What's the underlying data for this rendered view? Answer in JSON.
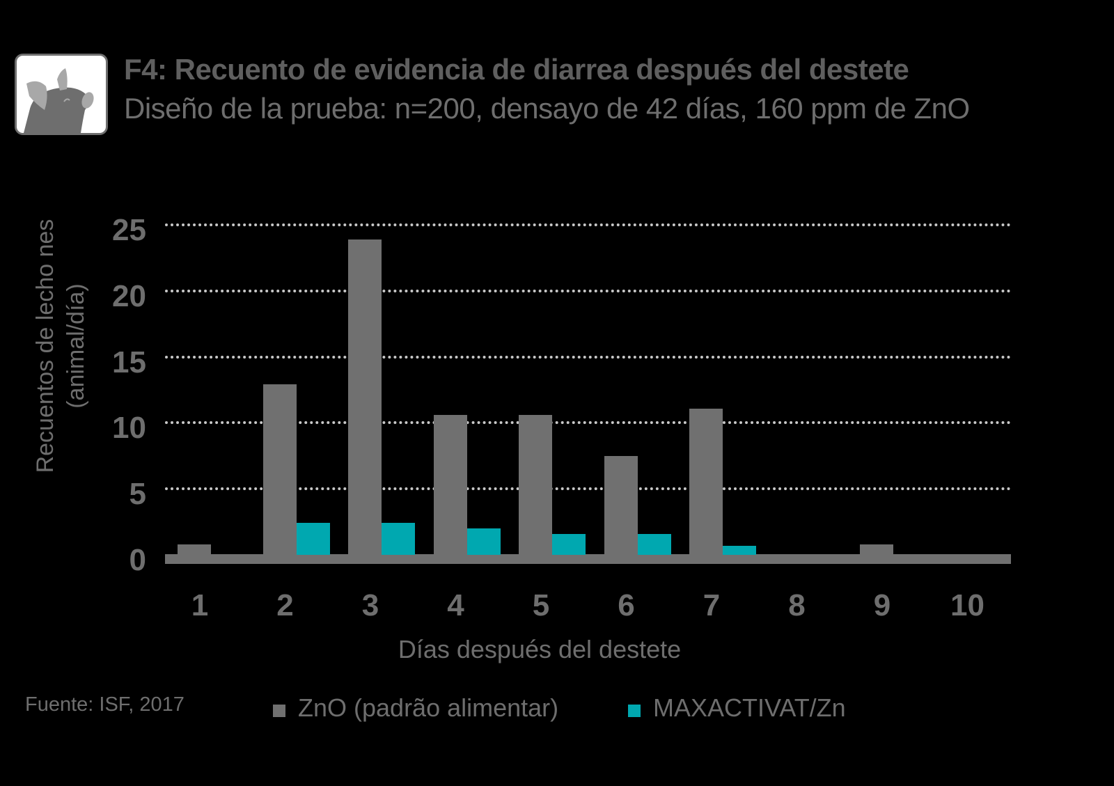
{
  "header": {
    "icon": "pig-icon",
    "title": "F4: Recuento de evidencia de diarrea después del destete",
    "subtitle": "Diseño de la prueba: n=200, densayo de 42 días, 160 ppm de ZnO"
  },
  "axes": {
    "ylabel_line1": "Recuentos de lecho nes",
    "ylabel_line2": "(animal/día)",
    "xlabel": "Días después del destete",
    "yticks": [
      "0",
      "5",
      "10",
      "15",
      "20",
      "25"
    ],
    "xticks": [
      "1",
      "2",
      "3",
      "4",
      "5",
      "6",
      "7",
      "8",
      "9",
      "10"
    ]
  },
  "footer": {
    "source": "Fuente: ISF, 2017",
    "legend": [
      {
        "label": "ZnO (padrão alimentar)",
        "color": "#707070"
      },
      {
        "label": "MAXACTIVAT/Zn",
        "color": "#00a8b0"
      }
    ]
  },
  "chart_data": {
    "type": "bar",
    "title": "F4: Recuento de evidencia de diarrea después del destete",
    "subtitle": "Diseño de la prueba: n=200, densayo de 42 días, 160 ppm de ZnO",
    "xlabel": "Días después del destete",
    "ylabel": "Recuentos de lecho nes (animal/día)",
    "categories": [
      "1",
      "2",
      "3",
      "4",
      "5",
      "6",
      "7",
      "8",
      "9",
      "10"
    ],
    "series": [
      {
        "name": "ZnO (padrão alimentar)",
        "color": "#707070",
        "values": [
          0.8,
          12.9,
          23.9,
          10.6,
          10.6,
          7.5,
          11.1,
          0,
          0.8,
          0
        ]
      },
      {
        "name": "MAXACTIVAT/Zn",
        "color": "#00a8b0",
        "values": [
          0,
          2.4,
          2.4,
          2.0,
          1.6,
          1.6,
          0.7,
          0,
          0,
          0
        ]
      }
    ],
    "ylim": [
      0,
      25
    ],
    "yticks": [
      0,
      5,
      10,
      15,
      20,
      25
    ],
    "grid": true,
    "grid_style": "dotted",
    "legend_position": "bottom",
    "annotations": [
      "Fuente: ISF, 2017"
    ]
  }
}
